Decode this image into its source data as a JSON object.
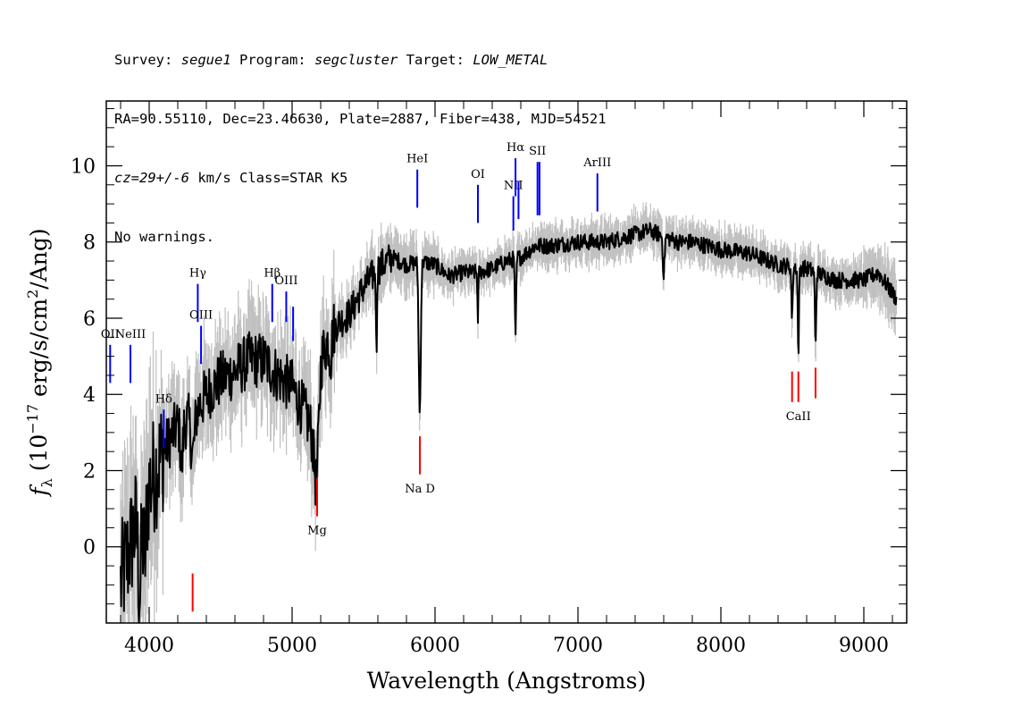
{
  "header": {
    "line1": {
      "survey_label": "Survey: ",
      "survey": "segue1",
      "program_label": " Program: ",
      "program": "segcluster",
      "target_label": " Target: ",
      "target": "LOW_METAL"
    },
    "line2": "RA=90.55110, Dec=23.46630, Plate=2887, Fiber=438, MJD=54521",
    "line3": {
      "cz": "cz=29+/-6",
      "rest": " km/s Class=STAR K5"
    },
    "line4": "No warnings."
  },
  "colors": {
    "flux": "#000000",
    "error_band": "#c0c0c0",
    "emission": "#0000ff",
    "absorption": "#ff0000"
  },
  "chart_data": {
    "type": "line",
    "xlabel": "Wavelength (Angstroms)",
    "ylabel": "f_λ (10^-17 erg/s/cm^2/Ang)",
    "ylabel_parts": {
      "f": "f",
      "sub": "λ",
      "pre": " (10",
      "exp1": "−17",
      "mid": " erg/s/cm",
      "exp2": "2",
      "post": "/Ang)"
    },
    "xlim": [
      3700,
      9300
    ],
    "ylim": [
      -2,
      11.7
    ],
    "xticks": [
      4000,
      5000,
      6000,
      7000,
      8000,
      9000
    ],
    "yticks": [
      0,
      2,
      4,
      6,
      8,
      10
    ],
    "grid": false,
    "continuum_points": [
      {
        "x": 3800,
        "y": -1.0
      },
      {
        "x": 3900,
        "y": 0.5
      },
      {
        "x": 4000,
        "y": 1.6
      },
      {
        "x": 4100,
        "y": 2.5
      },
      {
        "x": 4200,
        "y": 3.2
      },
      {
        "x": 4300,
        "y": 3.4
      },
      {
        "x": 4400,
        "y": 4.0
      },
      {
        "x": 4500,
        "y": 4.4
      },
      {
        "x": 4600,
        "y": 4.6
      },
      {
        "x": 4700,
        "y": 4.9
      },
      {
        "x": 4800,
        "y": 4.9
      },
      {
        "x": 4900,
        "y": 4.5
      },
      {
        "x": 5000,
        "y": 4.2
      },
      {
        "x": 5100,
        "y": 3.4
      },
      {
        "x": 5170,
        "y": 2.8
      },
      {
        "x": 5200,
        "y": 5.0
      },
      {
        "x": 5300,
        "y": 5.8
      },
      {
        "x": 5400,
        "y": 6.1
      },
      {
        "x": 5500,
        "y": 6.8
      },
      {
        "x": 5600,
        "y": 7.3
      },
      {
        "x": 5700,
        "y": 7.6
      },
      {
        "x": 5800,
        "y": 7.4
      },
      {
        "x": 5900,
        "y": 7.5
      },
      {
        "x": 6000,
        "y": 7.4
      },
      {
        "x": 6100,
        "y": 7.1
      },
      {
        "x": 6200,
        "y": 7.2
      },
      {
        "x": 6300,
        "y": 7.2
      },
      {
        "x": 6400,
        "y": 7.3
      },
      {
        "x": 6500,
        "y": 7.5
      },
      {
        "x": 6600,
        "y": 7.6
      },
      {
        "x": 6700,
        "y": 7.9
      },
      {
        "x": 6800,
        "y": 7.9
      },
      {
        "x": 7000,
        "y": 8.0
      },
      {
        "x": 7200,
        "y": 8.0
      },
      {
        "x": 7400,
        "y": 8.2
      },
      {
        "x": 7500,
        "y": 8.3
      },
      {
        "x": 7700,
        "y": 8.0
      },
      {
        "x": 7800,
        "y": 8.0
      },
      {
        "x": 8000,
        "y": 7.8
      },
      {
        "x": 8200,
        "y": 7.7
      },
      {
        "x": 8400,
        "y": 7.4
      },
      {
        "x": 8600,
        "y": 7.3
      },
      {
        "x": 8800,
        "y": 7.0
      },
      {
        "x": 9000,
        "y": 7.0
      },
      {
        "x": 9100,
        "y": 7.2
      },
      {
        "x": 9230,
        "y": 6.5
      }
    ],
    "absorption_features": [
      {
        "x": 3934,
        "depth": 2.0,
        "width": 15
      },
      {
        "x": 3969,
        "depth": 1.5,
        "width": 15
      },
      {
        "x": 4227,
        "depth": 1.2,
        "width": 12
      },
      {
        "x": 4305,
        "depth": 1.0,
        "width": 18
      },
      {
        "x": 5172,
        "depth": 1.2,
        "width": 25
      },
      {
        "x": 5270,
        "depth": 0.6,
        "width": 10
      },
      {
        "x": 5590,
        "depth": 2.5,
        "width": 4
      },
      {
        "x": 5893,
        "depth": 4.0,
        "width": 10
      },
      {
        "x": 6300,
        "depth": 1.4,
        "width": 4
      },
      {
        "x": 6563,
        "depth": 2.2,
        "width": 6
      },
      {
        "x": 7600,
        "depth": 1.0,
        "width": 8
      },
      {
        "x": 8498,
        "depth": 1.4,
        "width": 6
      },
      {
        "x": 8542,
        "depth": 2.3,
        "width": 6
      },
      {
        "x": 8662,
        "depth": 2.0,
        "width": 6
      }
    ],
    "emission_lines": [
      {
        "label": "OII",
        "x": 3727,
        "y_bottom": 4.3,
        "y_top": 5.3
      },
      {
        "label": "NeIII",
        "x": 3869,
        "y_bottom": 4.3,
        "y_top": 5.3
      },
      {
        "label": "Hδ",
        "x": 4102,
        "y_bottom": 2.6,
        "y_top": 3.6
      },
      {
        "label": "Hγ",
        "x": 4340,
        "y_bottom": 5.9,
        "y_top": 6.9
      },
      {
        "label": "OIII",
        "x": 4363,
        "y_bottom": 4.8,
        "y_top": 5.8
      },
      {
        "label": "Hβ",
        "x": 4861,
        "y_bottom": 5.9,
        "y_top": 6.9
      },
      {
        "label": "OIII",
        "x": 4959,
        "y_bottom": 5.9,
        "y_top": 6.7
      },
      {
        "label": "",
        "x": 5007,
        "y_bottom": 5.4,
        "y_top": 6.3
      },
      {
        "label": "HeI",
        "x": 5876,
        "y_bottom": 8.9,
        "y_top": 9.9
      },
      {
        "label": "OI",
        "x": 6300,
        "y_bottom": 8.5,
        "y_top": 9.5
      },
      {
        "label": "NII",
        "x": 6548,
        "y_bottom": 8.3,
        "y_top": 9.2
      },
      {
        "label": "Hα",
        "x": 6563,
        "y_bottom": 9.2,
        "y_top": 10.2
      },
      {
        "label": "",
        "x": 6584,
        "y_bottom": 8.6,
        "y_top": 9.6
      },
      {
        "label": "SII",
        "x": 6717,
        "y_bottom": 8.7,
        "y_top": 10.1
      },
      {
        "label": "",
        "x": 6731,
        "y_bottom": 8.7,
        "y_top": 10.1
      },
      {
        "label": "ArIII",
        "x": 7136,
        "y_bottom": 8.8,
        "y_top": 9.8
      }
    ],
    "absorption_lines": [
      {
        "label": "",
        "x": 4304,
        "y_bottom": -1.7,
        "y_top": -0.7
      },
      {
        "label": "Mg",
        "x": 5175,
        "y_bottom": 0.8,
        "y_top": 1.8
      },
      {
        "label": "Na D",
        "x": 5894,
        "y_bottom": 1.9,
        "y_top": 2.9
      },
      {
        "label": "",
        "x": 8498,
        "y_bottom": 3.8,
        "y_top": 4.6
      },
      {
        "label": "CaII",
        "x": 8542,
        "y_bottom": 3.8,
        "y_top": 4.6
      },
      {
        "label": "",
        "x": 8662,
        "y_bottom": 3.9,
        "y_top": 4.7
      }
    ]
  }
}
